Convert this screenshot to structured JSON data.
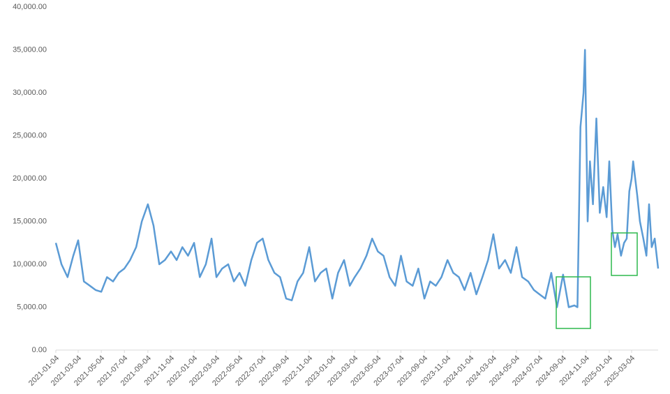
{
  "chart_data": {
    "type": "line",
    "x": [
      "2021-01-04",
      "2021-01-19",
      "2021-02-04",
      "2021-02-19",
      "2021-03-04",
      "2021-03-19",
      "2021-04-04",
      "2021-04-19",
      "2021-05-04",
      "2021-05-19",
      "2021-06-04",
      "2021-06-19",
      "2021-07-04",
      "2021-07-19",
      "2021-08-04",
      "2021-08-19",
      "2021-09-04",
      "2021-09-19",
      "2021-10-04",
      "2021-10-19",
      "2021-11-04",
      "2021-11-19",
      "2021-12-04",
      "2021-12-19",
      "2022-01-04",
      "2022-01-19",
      "2022-02-04",
      "2022-02-19",
      "2022-03-04",
      "2022-03-19",
      "2022-04-04",
      "2022-04-19",
      "2022-05-04",
      "2022-05-19",
      "2022-06-04",
      "2022-06-19",
      "2022-07-04",
      "2022-07-19",
      "2022-08-04",
      "2022-08-19",
      "2022-09-04",
      "2022-09-19",
      "2022-10-04",
      "2022-10-19",
      "2022-11-04",
      "2022-11-19",
      "2022-12-04",
      "2022-12-19",
      "2023-01-04",
      "2023-01-19",
      "2023-02-04",
      "2023-02-19",
      "2023-03-04",
      "2023-03-19",
      "2023-04-04",
      "2023-04-19",
      "2023-05-04",
      "2023-05-19",
      "2023-06-04",
      "2023-06-19",
      "2023-07-04",
      "2023-07-19",
      "2023-08-04",
      "2023-08-19",
      "2023-09-04",
      "2023-09-19",
      "2023-10-04",
      "2023-10-19",
      "2023-11-04",
      "2023-11-19",
      "2023-12-04",
      "2023-12-19",
      "2024-01-04",
      "2024-01-19",
      "2024-02-04",
      "2024-02-19",
      "2024-03-04",
      "2024-03-19",
      "2024-04-04",
      "2024-04-19",
      "2024-05-04",
      "2024-05-19",
      "2024-06-04",
      "2024-06-19",
      "2024-07-04",
      "2024-07-19",
      "2024-08-04",
      "2024-08-19",
      "2024-09-04",
      "2024-09-19",
      "2024-10-04",
      "2024-10-12",
      "2024-10-20",
      "2024-10-28",
      "2024-11-01",
      "2024-11-08",
      "2024-11-14",
      "2024-11-22",
      "2024-12-01",
      "2024-12-10",
      "2024-12-19",
      "2024-12-28",
      "2025-01-04",
      "2025-01-12",
      "2025-01-19",
      "2025-01-26",
      "2025-02-04",
      "2025-02-12",
      "2025-02-19",
      "2025-02-26",
      "2025-03-04",
      "2025-03-08",
      "2025-03-19",
      "2025-03-26",
      "2025-04-04",
      "2025-04-12",
      "2025-04-19",
      "2025-04-26",
      "2025-05-04",
      "2025-05-13"
    ],
    "series": [
      {
        "color": "#5b9bd5",
        "values": [
          12500,
          10000,
          8500,
          11000,
          12800,
          8000,
          7500,
          7000,
          6800,
          8500,
          8000,
          9000,
          9500,
          10500,
          12000,
          15000,
          17000,
          14500,
          10000,
          10500,
          11500,
          10500,
          12000,
          11000,
          12500,
          8500,
          10000,
          13000,
          8500,
          9500,
          10000,
          8000,
          9000,
          7500,
          10500,
          12500,
          13000,
          10500,
          9000,
          8500,
          6000,
          5800,
          8000,
          9000,
          12000,
          8000,
          9000,
          9500,
          6000,
          9000,
          10500,
          7500,
          8500,
          9500,
          11000,
          13000,
          11500,
          11000,
          8500,
          7500,
          11000,
          8000,
          7500,
          9500,
          6000,
          8000,
          7500,
          8500,
          10500,
          9000,
          8500,
          7000,
          9000,
          6500,
          8500,
          10500,
          13500,
          9500,
          10500,
          9000,
          12000,
          8500,
          8000,
          7000,
          6500,
          6000,
          9000,
          5000,
          8800,
          5000,
          5200,
          5000,
          26000,
          30000,
          35000,
          15000,
          22000,
          17000,
          27000,
          16000,
          19000,
          15500,
          22000,
          14000,
          12000,
          13500,
          11000,
          12500,
          13000,
          18500,
          20000,
          22000,
          18000,
          15000,
          13000,
          11000,
          17000,
          12000,
          13000,
          9500
        ]
      }
    ],
    "xlim": [
      "2021-01-04",
      "2025-05-13"
    ],
    "xticks": [
      "2021-01-04",
      "2021-03-04",
      "2021-05-04",
      "2021-07-04",
      "2021-09-04",
      "2021-11-04",
      "2022-01-04",
      "2022-03-04",
      "2022-05-04",
      "2022-07-04",
      "2022-09-04",
      "2022-11-04",
      "2023-01-04",
      "2023-03-04",
      "2023-05-04",
      "2023-07-04",
      "2023-09-04",
      "2023-11-04",
      "2024-01-04",
      "2024-03-04",
      "2024-05-04",
      "2024-07-04",
      "2024-09-04",
      "2024-11-04",
      "2025-01-04",
      "2025-03-04"
    ],
    "ylim": [
      0,
      40000
    ],
    "yticks": [
      {
        "value": 0,
        "label": "0.00"
      },
      {
        "value": 5000,
        "label": "5,000.00"
      },
      {
        "value": 10000,
        "label": "10,000.00"
      },
      {
        "value": 15000,
        "label": "15,000.00"
      },
      {
        "value": 20000,
        "label": "20,000.00"
      },
      {
        "value": 25000,
        "label": "25,000.00"
      },
      {
        "value": 30000,
        "label": "30,000.00"
      },
      {
        "value": 35000,
        "label": "35,000.00"
      },
      {
        "value": 40000,
        "label": "40,000.00"
      }
    ],
    "grid": false
  }
}
